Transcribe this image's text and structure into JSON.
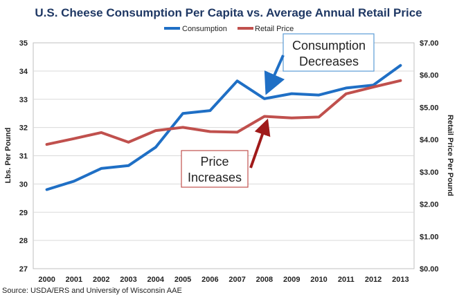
{
  "chart_data": {
    "type": "line",
    "title": "U.S. Cheese Consumption Per Capita vs. Average Annual Retail Price",
    "categories": [
      "2000",
      "2001",
      "2002",
      "2003",
      "2004",
      "2005",
      "2006",
      "2007",
      "2008",
      "2009",
      "2010",
      "2011",
      "2012",
      "2013"
    ],
    "series": [
      {
        "name": "Consumption",
        "axis": "left",
        "color": "#1f6fc5",
        "values": [
          29.8,
          30.1,
          30.55,
          30.65,
          31.3,
          32.5,
          32.6,
          33.65,
          33.02,
          33.2,
          33.15,
          33.4,
          33.5,
          34.2
        ]
      },
      {
        "name": "Retail Price",
        "axis": "right",
        "color": "#c0504d",
        "values": [
          3.85,
          4.03,
          4.22,
          3.92,
          4.28,
          4.38,
          4.25,
          4.23,
          4.72,
          4.67,
          4.7,
          5.42,
          5.63,
          5.83
        ]
      }
    ],
    "ylabel": "Lbs. Per Pound",
    "y2label": "Retail Price Per Pound",
    "ylim": [
      27,
      35
    ],
    "yticks": [
      "27",
      "28",
      "29",
      "30",
      "31",
      "32",
      "33",
      "34",
      "35"
    ],
    "y2lim": [
      0,
      7
    ],
    "y2ticks": [
      "$0.00",
      "$1.00",
      "$2.00",
      "$3.00",
      "$4.00",
      "$5.00",
      "$6.00",
      "$7.00"
    ],
    "gridlines": true,
    "legend_position": "top-center",
    "annotations": [
      {
        "id": "consumption",
        "lines": [
          "Consumption",
          "Decreases"
        ],
        "arrow_color": "#1f6fc5",
        "target_category": "2008",
        "target_series": "Consumption"
      },
      {
        "id": "price",
        "lines": [
          "Price",
          "Increases"
        ],
        "arrow_color": "#a01a1a",
        "target_category": "2008",
        "target_series": "Retail Price"
      }
    ],
    "source": "Source: USDA/ERS and University of Wisconsin AAE"
  }
}
